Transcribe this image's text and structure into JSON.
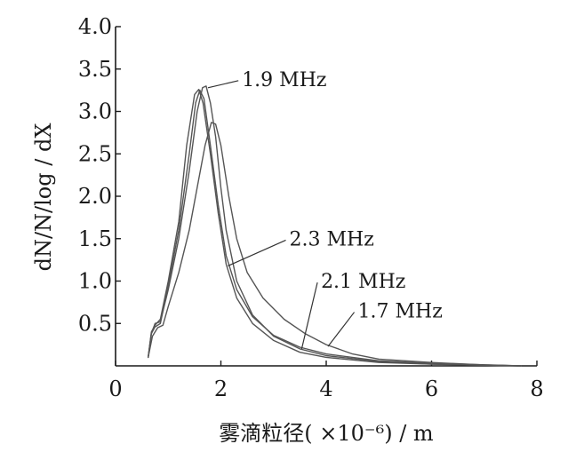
{
  "chart_data": {
    "type": "line",
    "title": "",
    "xlabel": "雾滴粒径( ×10⁻⁶) / m",
    "ylabel": "dN/N/log / dX",
    "xlim": [
      0,
      8
    ],
    "ylim": [
      0,
      4.0
    ],
    "x_ticks": [
      0,
      2,
      4,
      6,
      8
    ],
    "x_tick_labels": [
      "0",
      "2",
      "4",
      "6",
      "8"
    ],
    "y_ticks": [
      0.5,
      1.0,
      1.5,
      2.0,
      2.5,
      3.0,
      3.5,
      4.0
    ],
    "y_tick_labels": [
      "0.5",
      "1.0",
      "1.5",
      "2.0",
      "2.5",
      "3.0",
      "3.5",
      "4.0"
    ],
    "grid": false,
    "legend": "inline annotations",
    "line_color": "#555555",
    "series": [
      {
        "name": "1.9 MHz",
        "label_at": [
          2.4,
          3.3
        ],
        "points": [
          [
            0.62,
            0.1
          ],
          [
            0.68,
            0.38
          ],
          [
            0.75,
            0.5
          ],
          [
            0.85,
            0.52
          ],
          [
            1.0,
            0.9
          ],
          [
            1.2,
            1.5
          ],
          [
            1.4,
            2.3
          ],
          [
            1.55,
            3.0
          ],
          [
            1.65,
            3.28
          ],
          [
            1.72,
            3.3
          ],
          [
            1.8,
            3.1
          ],
          [
            1.9,
            2.7
          ],
          [
            2.0,
            2.1
          ],
          [
            2.1,
            1.6
          ],
          [
            2.3,
            1.0
          ],
          [
            2.6,
            0.6
          ],
          [
            3.0,
            0.35
          ],
          [
            3.5,
            0.2
          ],
          [
            4.0,
            0.12
          ],
          [
            5.0,
            0.05
          ],
          [
            6.0,
            0.02
          ],
          [
            7.7,
            0.0
          ]
        ]
      },
      {
        "name": "2.3 MHz",
        "label_at": [
          3.3,
          1.42
        ],
        "points": [
          [
            0.62,
            0.1
          ],
          [
            0.68,
            0.4
          ],
          [
            0.75,
            0.48
          ],
          [
            0.85,
            0.55
          ],
          [
            1.0,
            1.0
          ],
          [
            1.2,
            1.7
          ],
          [
            1.35,
            2.6
          ],
          [
            1.5,
            3.2
          ],
          [
            1.58,
            3.26
          ],
          [
            1.66,
            3.1
          ],
          [
            1.8,
            2.5
          ],
          [
            1.95,
            1.8
          ],
          [
            2.1,
            1.2
          ],
          [
            2.3,
            0.8
          ],
          [
            2.6,
            0.5
          ],
          [
            3.0,
            0.3
          ],
          [
            3.5,
            0.16
          ],
          [
            4.0,
            0.1
          ],
          [
            5.0,
            0.04
          ],
          [
            6.0,
            0.02
          ],
          [
            7.7,
            0.0
          ]
        ]
      },
      {
        "name": "2.1 MHz",
        "label_at": [
          3.9,
          0.92
        ],
        "points": [
          [
            0.62,
            0.1
          ],
          [
            0.68,
            0.38
          ],
          [
            0.75,
            0.46
          ],
          [
            0.85,
            0.5
          ],
          [
            1.0,
            0.95
          ],
          [
            1.2,
            1.6
          ],
          [
            1.4,
            2.5
          ],
          [
            1.52,
            3.1
          ],
          [
            1.6,
            3.25
          ],
          [
            1.68,
            3.15
          ],
          [
            1.8,
            2.6
          ],
          [
            1.95,
            1.9
          ],
          [
            2.1,
            1.3
          ],
          [
            2.3,
            0.9
          ],
          [
            2.6,
            0.58
          ],
          [
            3.0,
            0.36
          ],
          [
            3.5,
            0.22
          ],
          [
            4.0,
            0.14
          ],
          [
            5.0,
            0.06
          ],
          [
            6.0,
            0.03
          ],
          [
            7.7,
            0.0
          ]
        ]
      },
      {
        "name": "1.7 MHz",
        "label_at": [
          4.6,
          0.57
        ],
        "points": [
          [
            0.62,
            0.1
          ],
          [
            0.7,
            0.35
          ],
          [
            0.8,
            0.45
          ],
          [
            0.9,
            0.48
          ],
          [
            1.0,
            0.7
          ],
          [
            1.2,
            1.1
          ],
          [
            1.4,
            1.6
          ],
          [
            1.55,
            2.1
          ],
          [
            1.7,
            2.6
          ],
          [
            1.82,
            2.87
          ],
          [
            1.9,
            2.85
          ],
          [
            2.0,
            2.6
          ],
          [
            2.15,
            2.0
          ],
          [
            2.3,
            1.5
          ],
          [
            2.5,
            1.1
          ],
          [
            2.8,
            0.8
          ],
          [
            3.2,
            0.55
          ],
          [
            3.6,
            0.38
          ],
          [
            4.0,
            0.25
          ],
          [
            4.5,
            0.14
          ],
          [
            5.0,
            0.08
          ],
          [
            6.0,
            0.04
          ],
          [
            7.0,
            0.01
          ],
          [
            7.7,
            0.0
          ]
        ]
      }
    ]
  }
}
